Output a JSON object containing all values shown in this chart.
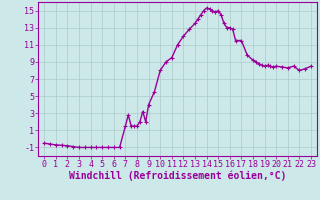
{
  "x": [
    0,
    0.5,
    1,
    1.5,
    2,
    2.5,
    3,
    3.5,
    4,
    4.5,
    5,
    5.5,
    6,
    6.5,
    7,
    7.25,
    7.5,
    7.75,
    8,
    8.25,
    8.5,
    8.75,
    9,
    9.5,
    10,
    10.5,
    11,
    11.5,
    12,
    12.5,
    13,
    13.25,
    13.5,
    13.75,
    14,
    14.25,
    14.5,
    14.75,
    15,
    15.25,
    15.5,
    15.75,
    16,
    16.25,
    16.5,
    17,
    17.5,
    18,
    18.25,
    18.5,
    18.75,
    19,
    19.25,
    19.5,
    19.75,
    20,
    20.5,
    21,
    21.5,
    22,
    22.5,
    23
  ],
  "y": [
    -0.5,
    -0.6,
    -0.7,
    -0.75,
    -0.8,
    -0.9,
    -1.0,
    -1.0,
    -1.0,
    -1.0,
    -1.0,
    -1.0,
    -1.0,
    -1.0,
    1.5,
    2.8,
    1.5,
    1.5,
    1.5,
    2.0,
    3.2,
    2.0,
    4.0,
    5.5,
    8.0,
    9.0,
    9.5,
    11.0,
    12.0,
    12.8,
    13.5,
    14.0,
    14.5,
    15.0,
    15.3,
    15.2,
    15.0,
    14.8,
    15.0,
    14.5,
    13.5,
    13.0,
    13.0,
    12.8,
    11.5,
    11.5,
    9.8,
    9.2,
    9.0,
    8.8,
    8.6,
    8.5,
    8.6,
    8.5,
    8.4,
    8.5,
    8.4,
    8.3,
    8.5,
    8.0,
    8.2,
    8.5
  ],
  "line_color": "#990099",
  "marker": "+",
  "marker_size": 3,
  "bg_color": "#cce8e8",
  "grid_color": "#aacccc",
  "xlabel": "Windchill (Refroidissement éolien,°C)",
  "xlabel_fontsize": 7,
  "tick_fontsize": 6,
  "ylim": [
    -2,
    16
  ],
  "yticks": [
    -1,
    1,
    3,
    5,
    7,
    9,
    11,
    13,
    15
  ],
  "xticks": [
    0,
    1,
    2,
    3,
    4,
    5,
    6,
    7,
    8,
    9,
    10,
    11,
    12,
    13,
    14,
    15,
    16,
    17,
    18,
    19,
    20,
    21,
    22,
    23
  ],
  "line_width": 1.0
}
